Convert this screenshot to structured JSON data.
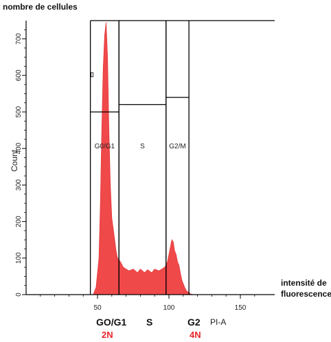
{
  "chart_data": {
    "type": "area",
    "title": "nombre de cellules",
    "ylabel": "Count",
    "xlabel": "PI-A",
    "xlabel_side": "intensité de fluorescence",
    "xlim": [
      0,
      165
    ],
    "ylim": [
      0,
      750
    ],
    "x_ticks": [
      50,
      100,
      150
    ],
    "y_ticks": [
      0,
      100,
      200,
      300,
      400,
      500,
      600,
      700
    ],
    "fill_color": "#f0494a",
    "gate_color": "#000000",
    "series": [
      {
        "x": [
          47,
          49,
          51,
          52,
          53,
          54,
          55,
          56,
          57,
          58,
          59,
          60,
          62,
          63,
          64,
          66,
          68,
          70,
          72,
          75,
          78,
          80,
          83,
          85,
          88,
          90,
          93,
          95,
          97,
          98,
          99,
          100,
          101,
          102,
          103,
          104,
          105,
          106,
          107,
          108,
          109,
          110,
          111,
          112,
          113,
          114,
          115,
          117
        ],
        "y": [
          0,
          20,
          100,
          250,
          450,
          620,
          710,
          745,
          650,
          450,
          300,
          210,
          150,
          120,
          100,
          90,
          75,
          70,
          65,
          70,
          60,
          70,
          60,
          68,
          60,
          70,
          65,
          70,
          75,
          80,
          90,
          110,
          130,
          150,
          145,
          120,
          110,
          90,
          80,
          60,
          40,
          30,
          20,
          12,
          8,
          5,
          2,
          0
        ]
      }
    ],
    "gates": [
      {
        "name": "G0/G1",
        "x_start": 45,
        "x_end": 65,
        "y_top": 500
      },
      {
        "name": "S",
        "x_start": 65,
        "x_end": 98,
        "y_top": 520
      },
      {
        "name": "G2/M",
        "x_start": 98,
        "x_end": 114,
        "y_top": 540
      }
    ],
    "outer_gate_top": 750,
    "outer_gate_x_start": 45,
    "phase_labels": [
      {
        "name": "GO/G1",
        "ploidy": "2N"
      },
      {
        "name": "S",
        "ploidy": ""
      },
      {
        "name": "G2",
        "ploidy": "4N"
      }
    ]
  }
}
